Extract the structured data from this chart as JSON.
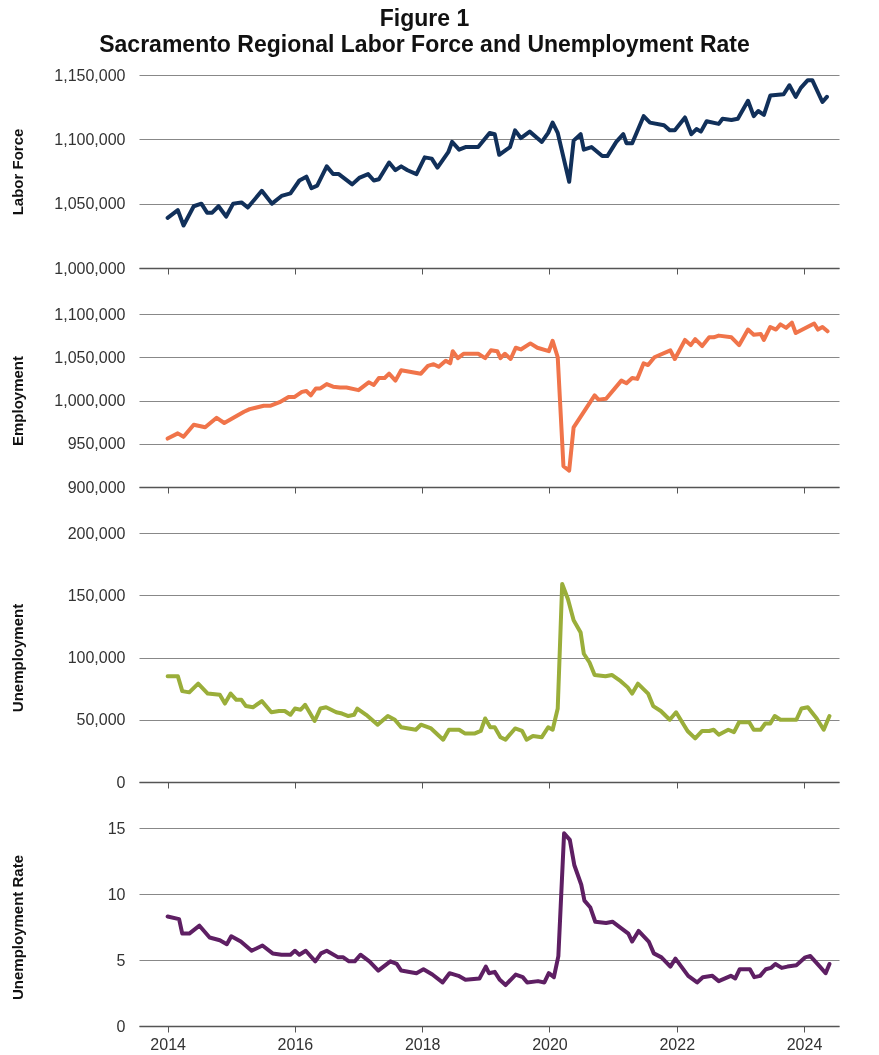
{
  "chart_data": [
    {
      "type": "line",
      "title": "Figure 1",
      "subtitle": "Sacramento Regional Labor Force and Unemployment Rate",
      "ylabel": "Labor Force",
      "xlim": [
        2013.55,
        2024.55
      ],
      "xticks": [
        2014,
        2016,
        2018,
        2020,
        2022,
        2024
      ],
      "ylim": [
        1000000,
        1150000
      ],
      "yticks": [
        {
          "value": 1000000,
          "label": "1,000,000"
        },
        {
          "value": 1050000,
          "label": "1,050,000"
        },
        {
          "value": 1100000,
          "label": "1,100,000"
        },
        {
          "value": 1150000,
          "label": "1,150,000"
        }
      ],
      "grid": "y",
      "tick_labels": "y",
      "x": [
        2014.0,
        2014.16,
        2014.25,
        2014.41,
        2014.53,
        2014.62,
        2014.7,
        2014.8,
        2014.92,
        2015.03,
        2015.16,
        2015.26,
        2015.48,
        2015.64,
        2015.79,
        2015.93,
        2016.07,
        2016.18,
        2016.26,
        2016.35,
        2016.5,
        2016.6,
        2016.69,
        2016.9,
        2017.01,
        2017.15,
        2017.24,
        2017.32,
        2017.48,
        2017.58,
        2017.67,
        2017.77,
        2017.91,
        2018.04,
        2018.15,
        2018.24,
        2018.41,
        2018.47,
        2018.58,
        2018.68,
        2018.88,
        2019.06,
        2019.14,
        2019.21,
        2019.38,
        2019.46,
        2019.55,
        2019.69,
        2019.88,
        2019.98,
        2020.05,
        2020.13,
        2020.31,
        2020.38,
        2020.49,
        2020.54,
        2020.66,
        2020.83,
        2020.91,
        2021.05,
        2021.16,
        2021.21,
        2021.3,
        2021.48,
        2021.58,
        2021.8,
        2021.89,
        2021.97,
        2022.13,
        2022.23,
        2022.31,
        2022.38,
        2022.47,
        2022.66,
        2022.72,
        2022.86,
        2022.96,
        2023.12,
        2023.21,
        2023.28,
        2023.37,
        2023.47,
        2023.68,
        2023.77,
        2023.87,
        2023.95,
        2024.06,
        2024.13,
        2024.29,
        2024.36
      ],
      "series": [
        {
          "color": "#11305a",
          "values": [
            1039000,
            1045000,
            1033000,
            1048000,
            1050000,
            1043000,
            1043000,
            1048000,
            1040000,
            1050000,
            1051000,
            1047000,
            1060000,
            1050000,
            1056000,
            1058000,
            1068000,
            1071000,
            1062000,
            1064000,
            1079000,
            1073000,
            1073000,
            1065000,
            1070000,
            1073000,
            1068000,
            1069000,
            1082000,
            1076000,
            1079000,
            1076000,
            1073000,
            1086000,
            1085000,
            1078000,
            1090000,
            1098000,
            1092000,
            1094000,
            1094000,
            1105000,
            1104000,
            1088000,
            1094000,
            1107000,
            1101000,
            1106000,
            1098000,
            1105000,
            1113000,
            1105000,
            1067000,
            1099000,
            1104000,
            1092000,
            1094000,
            1087000,
            1087000,
            1098000,
            1104000,
            1097000,
            1097000,
            1118000,
            1113000,
            1111000,
            1107000,
            1107000,
            1117000,
            1104000,
            1108000,
            1106000,
            1114000,
            1112000,
            1116000,
            1115000,
            1116000,
            1130000,
            1118000,
            1122000,
            1119000,
            1134000,
            1135000,
            1142000,
            1133000,
            1140000,
            1146000,
            1146000,
            1129000,
            1133000
          ]
        }
      ]
    },
    {
      "type": "line",
      "ylabel": "Employment",
      "xlim": [
        2013.55,
        2024.55
      ],
      "xticks": [
        2014,
        2016,
        2018,
        2020,
        2022,
        2024
      ],
      "ylim": [
        900000,
        1100000
      ],
      "yticks": [
        {
          "value": 900000,
          "label": "900,000"
        },
        {
          "value": 950000,
          "label": "950,000"
        },
        {
          "value": 1000000,
          "label": "1,000,000"
        },
        {
          "value": 1050000,
          "label": "1,050,000"
        },
        {
          "value": 1100000,
          "label": "1,100,000"
        }
      ],
      "grid": "y",
      "tick_labels": "y",
      "x": [
        2014.0,
        2014.16,
        2014.25,
        2014.41,
        2014.59,
        2014.77,
        2014.89,
        2015.2,
        2015.29,
        2015.51,
        2015.62,
        2015.76,
        2015.9,
        2015.99,
        2016.11,
        2016.18,
        2016.25,
        2016.33,
        2016.4,
        2016.5,
        2016.6,
        2016.71,
        2016.81,
        2017.0,
        2017.16,
        2017.24,
        2017.32,
        2017.41,
        2017.48,
        2017.58,
        2017.67,
        2017.98,
        2018.09,
        2018.18,
        2018.26,
        2018.37,
        2018.44,
        2018.48,
        2018.56,
        2018.65,
        2018.88,
        2018.99,
        2019.08,
        2019.18,
        2019.23,
        2019.3,
        2019.39,
        2019.47,
        2019.55,
        2019.7,
        2019.81,
        2019.99,
        2020.05,
        2020.13,
        2020.22,
        2020.31,
        2020.38,
        2020.71,
        2020.77,
        2020.89,
        2021.13,
        2021.21,
        2021.3,
        2021.38,
        2021.48,
        2021.55,
        2021.65,
        2021.9,
        2021.97,
        2022.13,
        2022.22,
        2022.29,
        2022.4,
        2022.51,
        2022.58,
        2022.66,
        2022.86,
        2022.98,
        2023.12,
        2023.21,
        2023.32,
        2023.37,
        2023.47,
        2023.56,
        2023.63,
        2023.72,
        2023.81,
        2023.87,
        2024.16,
        2024.22,
        2024.29,
        2024.37
      ],
      "series": [
        {
          "color": "#f0744a",
          "values": [
            956000,
            962000,
            958000,
            972000,
            969000,
            980000,
            974000,
            987000,
            990000,
            994000,
            994000,
            998000,
            1004000,
            1004000,
            1010000,
            1011000,
            1006000,
            1014000,
            1014000,
            1019000,
            1016000,
            1015000,
            1015000,
            1012000,
            1021000,
            1018000,
            1026000,
            1026000,
            1031000,
            1023000,
            1035000,
            1031000,
            1040000,
            1042000,
            1039000,
            1046000,
            1043000,
            1057000,
            1049000,
            1054000,
            1054000,
            1049000,
            1058000,
            1057000,
            1049000,
            1054000,
            1048000,
            1061000,
            1059000,
            1066000,
            1061000,
            1057000,
            1069000,
            1050000,
            924000,
            919000,
            969000,
            1006000,
            1001000,
            1002000,
            1023000,
            1020000,
            1026000,
            1025000,
            1043000,
            1041000,
            1050000,
            1058000,
            1048000,
            1070000,
            1064000,
            1071000,
            1063000,
            1073000,
            1073000,
            1075000,
            1073000,
            1064000,
            1082000,
            1076000,
            1077000,
            1070000,
            1085000,
            1082000,
            1088000,
            1084000,
            1090000,
            1078000,
            1089000,
            1082000,
            1085000,
            1080000
          ]
        }
      ]
    },
    {
      "type": "line",
      "ylabel": "Unemployment",
      "xlim": [
        2013.55,
        2024.55
      ],
      "xticks": [
        2014,
        2016,
        2018,
        2020,
        2022,
        2024
      ],
      "ylim": [
        0,
        200000
      ],
      "yticks": [
        0,
        {
          "value": 50000,
          "label": "50,000"
        },
        {
          "value": 100000,
          "label": "100,000"
        },
        {
          "value": 150000,
          "label": "150,000"
        },
        {
          "value": 200000,
          "label": "200,000"
        }
      ],
      "grid": "y",
      "tick_labels": "y",
      "x": [
        2014.0,
        2014.16,
        2014.23,
        2014.34,
        2014.48,
        2014.63,
        2014.82,
        2014.9,
        2014.99,
        2015.08,
        2015.16,
        2015.23,
        2015.34,
        2015.48,
        2015.63,
        2015.75,
        2015.84,
        2015.93,
        2016.0,
        2016.09,
        2016.16,
        2016.31,
        2016.4,
        2016.49,
        2016.65,
        2016.74,
        2016.84,
        2016.93,
        2016.98,
        2017.12,
        2017.3,
        2017.46,
        2017.57,
        2017.67,
        2017.9,
        2017.98,
        2018.14,
        2018.33,
        2018.42,
        2018.58,
        2018.67,
        2018.83,
        2018.92,
        2018.99,
        2019.07,
        2019.14,
        2019.23,
        2019.31,
        2019.46,
        2019.57,
        2019.64,
        2019.74,
        2019.88,
        2019.98,
        2020.05,
        2020.13,
        2020.2,
        2020.29,
        2020.38,
        2020.49,
        2020.54,
        2020.63,
        2020.71,
        2020.88,
        2020.98,
        2021.12,
        2021.23,
        2021.3,
        2021.39,
        2021.55,
        2021.63,
        2021.75,
        2021.89,
        2021.99,
        2022.17,
        2022.29,
        2022.4,
        2022.51,
        2022.58,
        2022.66,
        2022.81,
        2022.9,
        2022.98,
        2023.14,
        2023.21,
        2023.32,
        2023.39,
        2023.47,
        2023.54,
        2023.63,
        2023.88,
        2023.96,
        2024.06,
        2024.2,
        2024.31,
        2024.4
      ],
      "series": [
        {
          "color": "#9aae3a",
          "values": [
            85000,
            85000,
            73000,
            72000,
            79000,
            71000,
            70000,
            63000,
            71000,
            66000,
            66000,
            61000,
            60000,
            65000,
            56000,
            57000,
            57000,
            54000,
            59000,
            58000,
            62000,
            49000,
            59000,
            60000,
            56000,
            55000,
            53000,
            54000,
            59000,
            54000,
            46000,
            53000,
            50000,
            44000,
            42000,
            46000,
            43000,
            34000,
            42000,
            42000,
            39000,
            39000,
            41000,
            51000,
            44000,
            44000,
            36000,
            34000,
            43000,
            41000,
            34000,
            37000,
            36000,
            44000,
            42000,
            59000,
            159000,
            147000,
            130000,
            120000,
            103000,
            96000,
            86000,
            85000,
            86000,
            81000,
            76000,
            71000,
            79000,
            71000,
            61000,
            57000,
            50000,
            56000,
            41000,
            35000,
            41000,
            41000,
            42000,
            38000,
            42000,
            40000,
            48000,
            48000,
            42000,
            42000,
            47000,
            47000,
            53000,
            50000,
            50000,
            59000,
            60000,
            51000,
            42000,
            53000
          ]
        }
      ]
    },
    {
      "type": "line",
      "ylabel": "Unemployment Rate",
      "xlim": [
        2013.55,
        2024.55
      ],
      "xticks": [
        2014,
        2016,
        2018,
        2020,
        2022,
        2024
      ],
      "ylim": [
        0,
        15
      ],
      "yticks": [
        0,
        5,
        10,
        15
      ],
      "grid": "y",
      "x": [
        2014.0,
        2014.18,
        2014.23,
        2014.34,
        2014.5,
        2014.66,
        2014.82,
        2014.93,
        2015.0,
        2015.15,
        2015.32,
        2015.49,
        2015.65,
        2015.79,
        2015.93,
        2016.0,
        2016.07,
        2016.17,
        2016.32,
        2016.41,
        2016.5,
        2016.68,
        2016.76,
        2016.85,
        2016.94,
        2017.03,
        2017.17,
        2017.31,
        2017.5,
        2017.6,
        2017.67,
        2017.91,
        2018.02,
        2018.16,
        2018.32,
        2018.43,
        2018.57,
        2018.68,
        2018.9,
        2019.0,
        2019.05,
        2019.14,
        2019.22,
        2019.31,
        2019.47,
        2019.58,
        2019.65,
        2019.82,
        2019.92,
        2019.99,
        2020.07,
        2020.14,
        2020.23,
        2020.32,
        2020.39,
        2020.5,
        2020.55,
        2020.64,
        2020.72,
        2020.89,
        2020.99,
        2021.13,
        2021.24,
        2021.3,
        2021.4,
        2021.56,
        2021.64,
        2021.76,
        2021.9,
        2021.98,
        2022.18,
        2022.32,
        2022.41,
        2022.56,
        2022.66,
        2022.85,
        2022.92,
        2022.99,
        2023.15,
        2023.22,
        2023.31,
        2023.4,
        2023.48,
        2023.55,
        2023.65,
        2023.74,
        2023.88,
        2024.02,
        2024.1,
        2024.25,
        2024.34,
        2024.4
      ],
      "series": [
        {
          "color": "#5e1f63",
          "values": [
            8.3,
            8.1,
            7.0,
            7.0,
            7.6,
            6.7,
            6.5,
            6.2,
            6.8,
            6.4,
            5.7,
            6.1,
            5.5,
            5.4,
            5.4,
            5.7,
            5.4,
            5.7,
            4.9,
            5.5,
            5.7,
            5.2,
            5.2,
            4.9,
            4.9,
            5.4,
            4.9,
            4.2,
            4.9,
            4.7,
            4.2,
            4.0,
            4.3,
            3.9,
            3.3,
            4.0,
            3.8,
            3.5,
            3.6,
            4.5,
            4.0,
            4.1,
            3.5,
            3.1,
            3.9,
            3.7,
            3.3,
            3.4,
            3.3,
            4.0,
            3.7,
            5.3,
            14.6,
            14.1,
            12.2,
            10.7,
            9.5,
            9.0,
            7.9,
            7.8,
            7.9,
            7.4,
            7.0,
            6.4,
            7.2,
            6.4,
            5.5,
            5.2,
            4.5,
            5.1,
            3.8,
            3.3,
            3.7,
            3.8,
            3.4,
            3.8,
            3.6,
            4.3,
            4.3,
            3.7,
            3.8,
            4.3,
            4.4,
            4.7,
            4.4,
            4.5,
            4.6,
            5.2,
            5.3,
            4.5,
            4.0,
            4.7
          ]
        }
      ]
    }
  ]
}
